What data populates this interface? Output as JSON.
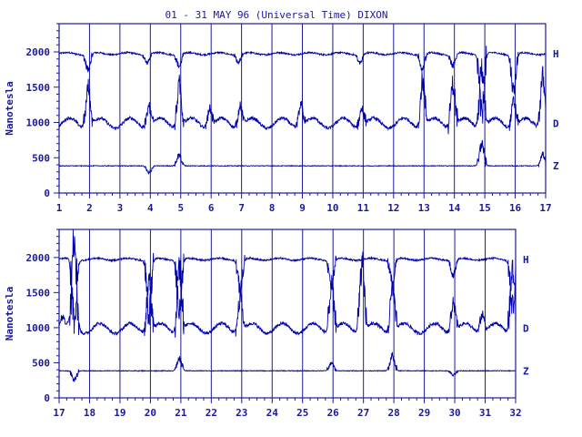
{
  "title": "01 - 31 MAY 96 (Universal Time) DIXON",
  "ylabel": "Nanotesla",
  "colors": {
    "ink": "#1a1a99",
    "trace": "#0000aa"
  },
  "chart_data": [
    {
      "type": "line",
      "panel": "top",
      "ylabel": "Nanotesla",
      "xlim": [
        1,
        17
      ],
      "ylim": [
        0,
        2400
      ],
      "xticks": [
        "1",
        "2",
        "3",
        "4",
        "5",
        "6",
        "7",
        "8",
        "9",
        "10",
        "11",
        "12",
        "13",
        "14",
        "15",
        "16",
        "17"
      ],
      "yticks": [
        "0",
        "500",
        "1000",
        "1500",
        "2000"
      ],
      "grid": "vertical daily lines",
      "series": [
        {
          "name": "H",
          "baseline": 1975,
          "dips": [
            {
              "day": 1.95,
              "value": 1750
            },
            {
              "day": 3.9,
              "value": 1850
            },
            {
              "day": 4.95,
              "value": 1800
            },
            {
              "day": 6.9,
              "value": 1850
            },
            {
              "day": 10.9,
              "value": 1850
            },
            {
              "day": 12.95,
              "value": 1750
            },
            {
              "day": 13.95,
              "value": 1800
            },
            {
              "day": 14.9,
              "value": 1100
            },
            {
              "day": 15.95,
              "value": 1450
            }
          ]
        },
        {
          "name": "D",
          "baseline": 990,
          "spikes": [
            {
              "day": 1.95,
              "value": 1550
            },
            {
              "day": 3.95,
              "value": 1280
            },
            {
              "day": 4.95,
              "value": 1580
            },
            {
              "day": 5.95,
              "value": 1250
            },
            {
              "day": 6.95,
              "value": 1280
            },
            {
              "day": 8.95,
              "value": 1300
            },
            {
              "day": 10.95,
              "value": 1250
            },
            {
              "day": 12.95,
              "value": 1650
            },
            {
              "day": 13.95,
              "value": 1600
            },
            {
              "day": 14.9,
              "value": 1850
            },
            {
              "day": 15.95,
              "value": 1350
            },
            {
              "day": 16.9,
              "value": 1700
            }
          ]
        },
        {
          "name": "Z",
          "baseline": 385,
          "bumps": [
            {
              "day": 3.95,
              "value": 280
            },
            {
              "day": 4.95,
              "value": 540
            },
            {
              "day": 14.9,
              "value": 700
            },
            {
              "day": 16.9,
              "value": 550
            }
          ]
        }
      ]
    },
    {
      "type": "line",
      "panel": "bottom",
      "ylabel": "Nanotesla",
      "xlim": [
        17,
        32
      ],
      "ylim": [
        0,
        2400
      ],
      "xticks": [
        "17",
        "18",
        "19",
        "20",
        "21",
        "22",
        "23",
        "24",
        "25",
        "26",
        "27",
        "28",
        "29",
        "30",
        "31",
        "32"
      ],
      "yticks": [
        "0",
        "500",
        "1000",
        "1500",
        "2000"
      ],
      "grid": "vertical daily lines",
      "series": [
        {
          "name": "H",
          "baseline": 1975,
          "dips": [
            {
              "day": 17.5,
              "value": 1100
            },
            {
              "day": 19.95,
              "value": 1200
            },
            {
              "day": 20.95,
              "value": 1300
            },
            {
              "day": 22.95,
              "value": 1550
            },
            {
              "day": 25.95,
              "value": 1600
            },
            {
              "day": 27.95,
              "value": 1650
            },
            {
              "day": 29.95,
              "value": 1750
            },
            {
              "day": 31.9,
              "value": 1300
            }
          ]
        },
        {
          "name": "D",
          "baseline": 990,
          "spikes": [
            {
              "day": 17.1,
              "value": 1150
            },
            {
              "day": 17.5,
              "value": 2350
            },
            {
              "day": 19.95,
              "value": 1800
            },
            {
              "day": 20.95,
              "value": 1950
            },
            {
              "day": 22.95,
              "value": 1500
            },
            {
              "day": 25.95,
              "value": 1650
            },
            {
              "day": 26.95,
              "value": 1950
            },
            {
              "day": 27.95,
              "value": 1600
            },
            {
              "day": 29.95,
              "value": 1400
            },
            {
              "day": 30.9,
              "value": 1250
            },
            {
              "day": 31.9,
              "value": 1900
            }
          ]
        },
        {
          "name": "Z",
          "baseline": 385,
          "bumps": [
            {
              "day": 17.5,
              "value": 250
            },
            {
              "day": 20.95,
              "value": 560
            },
            {
              "day": 25.95,
              "value": 500
            },
            {
              "day": 27.95,
              "value": 600
            },
            {
              "day": 29.95,
              "value": 320
            }
          ]
        }
      ]
    }
  ]
}
